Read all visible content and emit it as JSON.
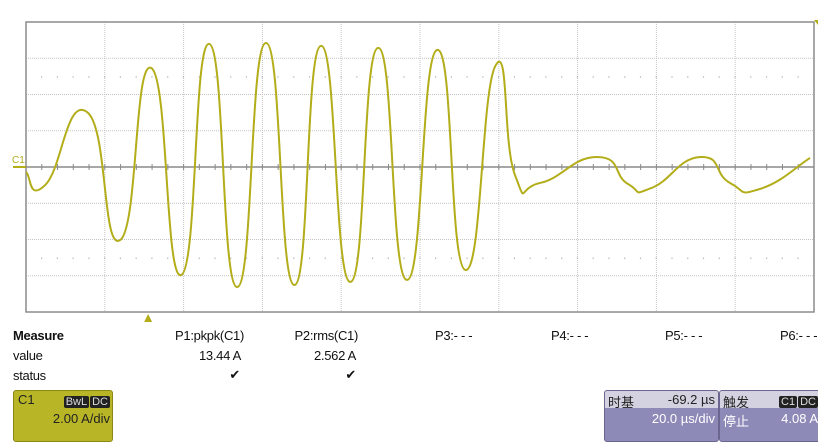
{
  "channel": {
    "name": "C1",
    "color": "#b3ad1a",
    "bandwidth_tag": "BwL",
    "coupling_tag": "DC",
    "scale": "2.00 A/div"
  },
  "measure": {
    "header": "Measure",
    "value_label": "value",
    "status_label": "status",
    "params": [
      {
        "label": "P1:pkpk(C1)",
        "value": "13.44 A",
        "status": "✔"
      },
      {
        "label": "P2:rms(C1)",
        "value": "2.562 A",
        "status": "✔"
      },
      {
        "label": "P3:- - -",
        "value": "",
        "status": ""
      },
      {
        "label": "P4:- - -",
        "value": "",
        "status": ""
      },
      {
        "label": "P5:- - -",
        "value": "",
        "status": ""
      },
      {
        "label": "P6:- - -",
        "value": "",
        "status": ""
      }
    ]
  },
  "timebase": {
    "label": "时基",
    "delay": "-69.2 µs",
    "scale": "20.0 µs/div"
  },
  "trigger": {
    "label": "触发",
    "source_tag": "C1",
    "coupling_tag": "DC",
    "mode": "停止",
    "level": "4.08 A"
  },
  "chart_data": {
    "type": "line",
    "grid": true,
    "xdivisions": 10,
    "ydivisions": 8,
    "x_unit": "µs",
    "y_unit": "A",
    "x_per_div": 20,
    "y_per_div": 2,
    "xlim": [
      -31,
      169
    ],
    "ylim": [
      -8,
      8
    ],
    "series": [
      {
        "name": "C1",
        "color": "#b3ad1a",
        "x": [
          -31.0,
          -26.1,
          -15.5,
          -7.1,
          0.8,
          8.4,
          15.5,
          22.6,
          29.9,
          37.1,
          43.9,
          51.3,
          58.4,
          65.7,
          73.4,
          80.5,
          88.1,
          93.1,
          99.5,
          114.0,
          121.8,
          127.7,
          140.1,
          147.7,
          155.3,
          168.0
        ],
        "y": [
          -0.28,
          -0.99,
          3.03,
          -4.03,
          5.46,
          -5.96,
          6.79,
          -6.62,
          6.84,
          -6.51,
          6.68,
          -6.34,
          6.57,
          -6.23,
          6.46,
          -5.68,
          5.57,
          -0.44,
          -0.88,
          0.55,
          -0.94,
          -1.16,
          0.55,
          -0.88,
          -1.21,
          0.5
        ]
      }
    ]
  }
}
